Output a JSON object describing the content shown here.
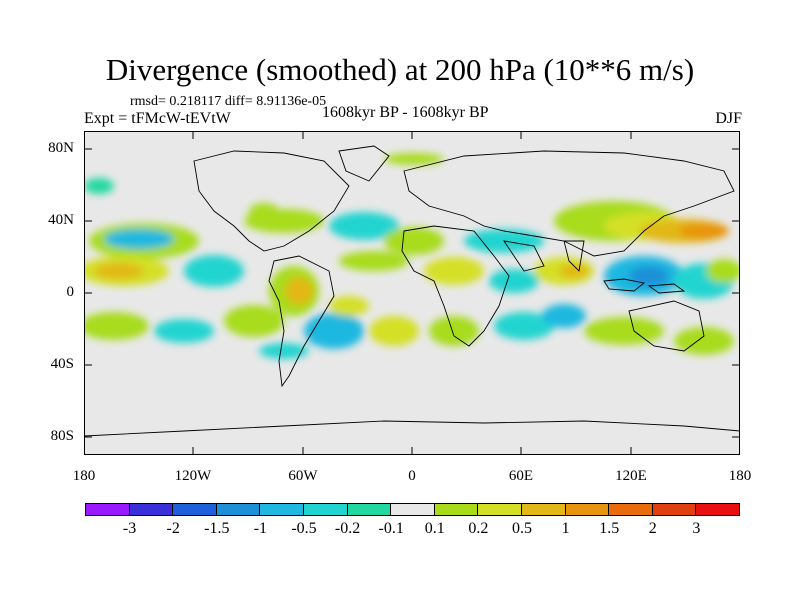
{
  "title": "Divergence (smoothed) at 200 hPa (10**6 m/s)",
  "stats": "rmsd= 0.218117 diff= 8.91136e-05",
  "experiment": "Expt = tFMcW-tEVtW",
  "period": "1608kyr BP - 1608kyr BP",
  "season": "DJF",
  "y_axis_labels": [
    "80N",
    "40N",
    "0",
    "40S",
    "80S"
  ],
  "x_axis_labels": [
    "180",
    "120W",
    "60W",
    "0",
    "60E",
    "120E",
    "180"
  ],
  "colorbar": {
    "labels": [
      "-3",
      "-2",
      "-1.5",
      "-1",
      "-0.5",
      "-0.2",
      "-0.1",
      "0.1",
      "0.2",
      "0.5",
      "1",
      "1.5",
      "2",
      "3"
    ],
    "colors": [
      "#9a1aff",
      "#3a2fd8",
      "#1e5fdc",
      "#1e90d8",
      "#1fb8e0",
      "#22d4d0",
      "#20d8a0",
      "#e8e8e8",
      "#a8dc1a",
      "#d4e026",
      "#e2b818",
      "#e8940e",
      "#e86c0c",
      "#e04010",
      "#e81010"
    ]
  },
  "colors": {
    "ocean_background": "#e8e8e8",
    "coastline": "#000000"
  }
}
